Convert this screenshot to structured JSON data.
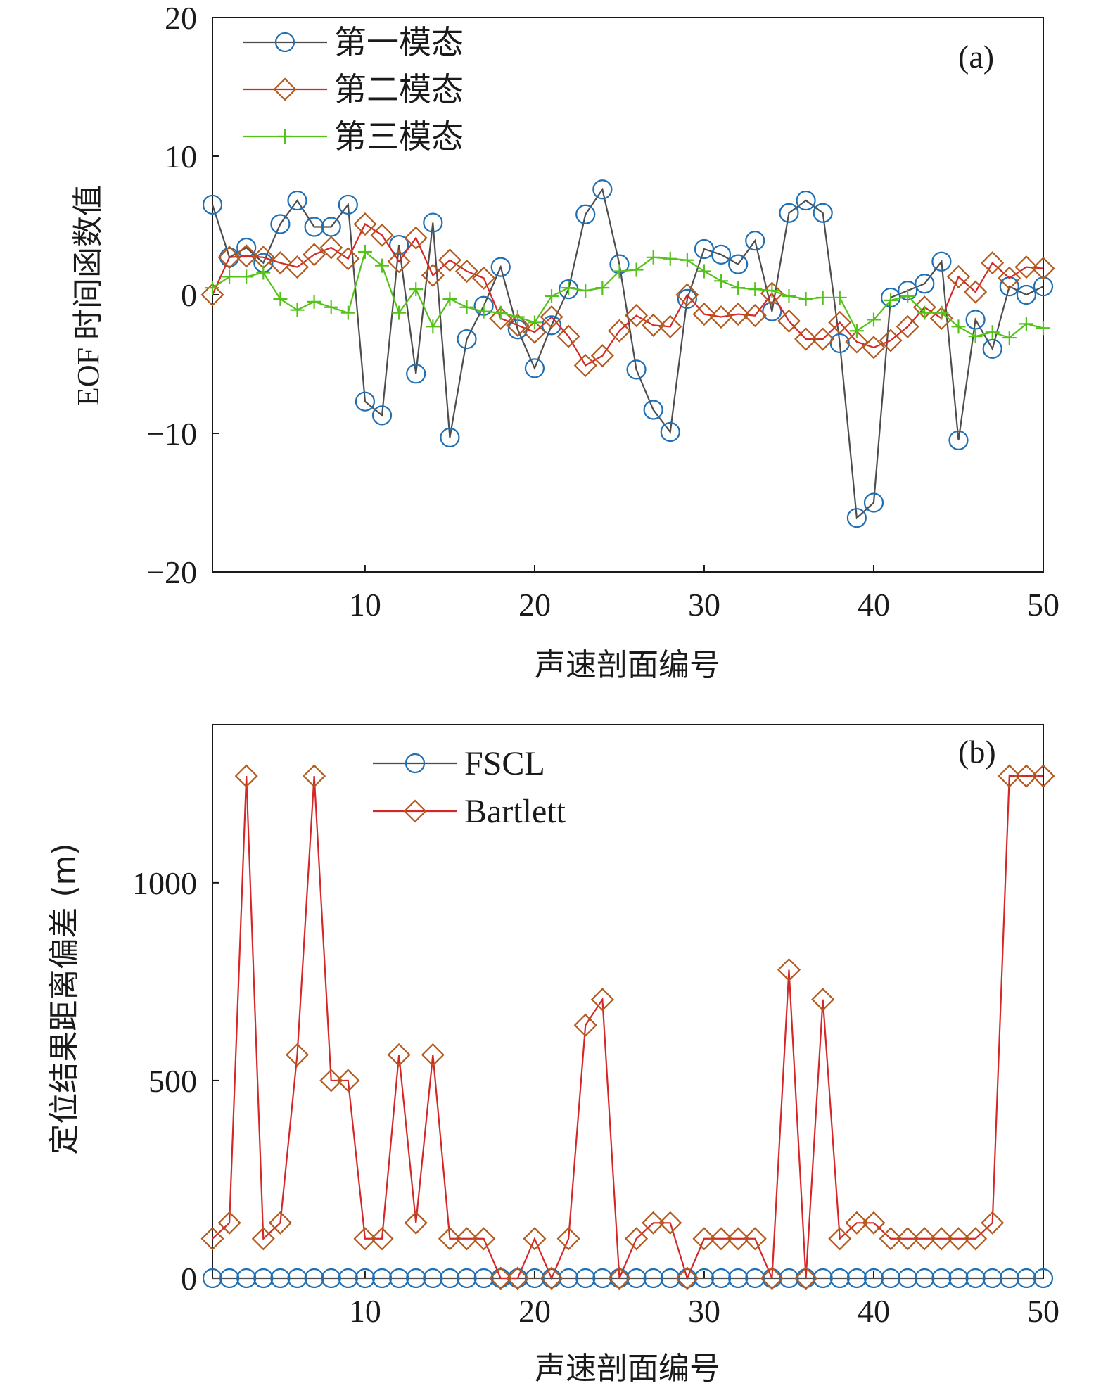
{
  "chart_data": [
    {
      "type": "line",
      "panel_label": "(a)",
      "xlabel": "声速剖面编号",
      "ylabel": "EOF 时间函数值",
      "xlim": [
        1,
        50
      ],
      "ylim": [
        -20,
        20
      ],
      "xticks": [
        10,
        20,
        30,
        40,
        50
      ],
      "yticks": [
        -20,
        -10,
        0,
        10,
        20
      ],
      "ytick_labels": [
        "−20",
        "−10",
        "0",
        "10",
        "20"
      ],
      "legend_position": "top-left",
      "x": [
        1,
        2,
        3,
        4,
        5,
        6,
        7,
        8,
        9,
        10,
        11,
        12,
        13,
        14,
        15,
        16,
        17,
        18,
        19,
        20,
        21,
        22,
        23,
        24,
        25,
        26,
        27,
        28,
        29,
        30,
        31,
        32,
        33,
        34,
        35,
        36,
        37,
        38,
        39,
        40,
        41,
        42,
        43,
        44,
        45,
        46,
        47,
        48,
        49,
        50
      ],
      "series": [
        {
          "name": "第一模态",
          "marker": "circle",
          "line_color": "#4d4d4d",
          "marker_color": "#1f6fb4",
          "values": [
            6.5,
            2.7,
            3.4,
            2.3,
            5.1,
            6.8,
            4.9,
            4.9,
            6.5,
            -7.7,
            -8.7,
            3.6,
            -5.7,
            5.2,
            -10.3,
            -3.2,
            -0.8,
            2.0,
            -2.5,
            -5.3,
            -2.2,
            0.4,
            5.8,
            7.6,
            2.2,
            -5.4,
            -8.3,
            -9.9,
            -0.3,
            3.3,
            2.9,
            2.2,
            3.9,
            -1.2,
            5.9,
            6.8,
            5.9,
            -3.5,
            -16.1,
            -15.0,
            -0.2,
            0.3,
            0.8,
            2.4,
            -10.5,
            -1.8,
            -3.9,
            0.6,
            0.0,
            0.6
          ]
        },
        {
          "name": "第二模态",
          "marker": "diamond",
          "line_color": "#d62728",
          "marker_color": "#b35a1f",
          "values": [
            0.0,
            2.7,
            2.8,
            2.7,
            2.3,
            2.0,
            2.9,
            3.4,
            2.6,
            5.1,
            4.3,
            2.4,
            4.1,
            1.4,
            2.5,
            1.7,
            1.2,
            -1.7,
            -2.2,
            -2.7,
            -1.6,
            -3.0,
            -5.1,
            -4.4,
            -2.6,
            -1.5,
            -2.2,
            -2.3,
            0.0,
            -1.4,
            -1.6,
            -1.4,
            -1.5,
            0.1,
            -1.9,
            -3.2,
            -3.2,
            -2.0,
            -3.4,
            -3.8,
            -3.3,
            -2.3,
            -0.9,
            -1.7,
            1.3,
            0.2,
            2.3,
            1.2,
            2.0,
            1.9
          ]
        },
        {
          "name": "第三模态",
          "marker": "plus",
          "line_color": "#55c21b",
          "marker_color": "#55c21b",
          "values": [
            0.5,
            1.3,
            1.3,
            1.6,
            -0.3,
            -1.1,
            -0.5,
            -0.9,
            -1.3,
            3.1,
            2.1,
            -1.3,
            0.4,
            -2.3,
            -0.3,
            -0.9,
            -1.2,
            -1.3,
            -1.6,
            -2.0,
            -0.1,
            0.5,
            0.3,
            0.5,
            1.7,
            1.8,
            2.7,
            2.6,
            2.5,
            1.7,
            1.0,
            0.5,
            0.4,
            0.3,
            -0.1,
            -0.3,
            -0.2,
            -0.2,
            -2.6,
            -1.8,
            -0.4,
            -0.1,
            -1.3,
            -1.3,
            -2.3,
            -3.0,
            -2.7,
            -3.1,
            -2.1,
            -2.4
          ]
        }
      ]
    },
    {
      "type": "line",
      "panel_label": "(b)",
      "xlabel": "声速剖面编号",
      "ylabel": "定位结果距离偏差 (m)",
      "xlim": [
        1,
        50
      ],
      "ylim": [
        0,
        1400
      ],
      "xticks": [
        10,
        20,
        30,
        40,
        50
      ],
      "yticks": [
        0,
        500,
        1000
      ],
      "ytick_labels": [
        "0",
        "500",
        "1000"
      ],
      "legend_position": "top-left",
      "x": [
        1,
        2,
        3,
        4,
        5,
        6,
        7,
        8,
        9,
        10,
        11,
        12,
        13,
        14,
        15,
        16,
        17,
        18,
        19,
        20,
        21,
        22,
        23,
        24,
        25,
        26,
        27,
        28,
        29,
        30,
        31,
        32,
        33,
        34,
        35,
        36,
        37,
        38,
        39,
        40,
        41,
        42,
        43,
        44,
        45,
        46,
        47,
        48,
        49,
        50
      ],
      "series": [
        {
          "name": "FSCL",
          "marker": "circle",
          "line_color": "#4d4d4d",
          "marker_color": "#1f6fb4",
          "values": [
            0,
            0,
            0,
            0,
            0,
            0,
            0,
            0,
            0,
            0,
            0,
            0,
            0,
            0,
            0,
            0,
            0,
            0,
            0,
            0,
            0,
            0,
            0,
            0,
            0,
            0,
            0,
            0,
            0,
            0,
            0,
            0,
            0,
            0,
            0,
            0,
            0,
            0,
            0,
            0,
            0,
            0,
            0,
            0,
            0,
            0,
            0,
            0,
            0,
            0
          ]
        },
        {
          "name": "Bartlett",
          "marker": "diamond",
          "line_color": "#d62728",
          "marker_color": "#b35a1f",
          "values": [
            100,
            140,
            1270,
            100,
            140,
            565,
            1270,
            500,
            500,
            100,
            100,
            565,
            140,
            565,
            100,
            100,
            100,
            0,
            0,
            100,
            0,
            100,
            640,
            705,
            0,
            100,
            140,
            140,
            0,
            100,
            100,
            100,
            100,
            0,
            780,
            0,
            705,
            100,
            140,
            140,
            100,
            100,
            100,
            100,
            100,
            100,
            140,
            1270,
            1270,
            1270
          ]
        }
      ]
    }
  ]
}
